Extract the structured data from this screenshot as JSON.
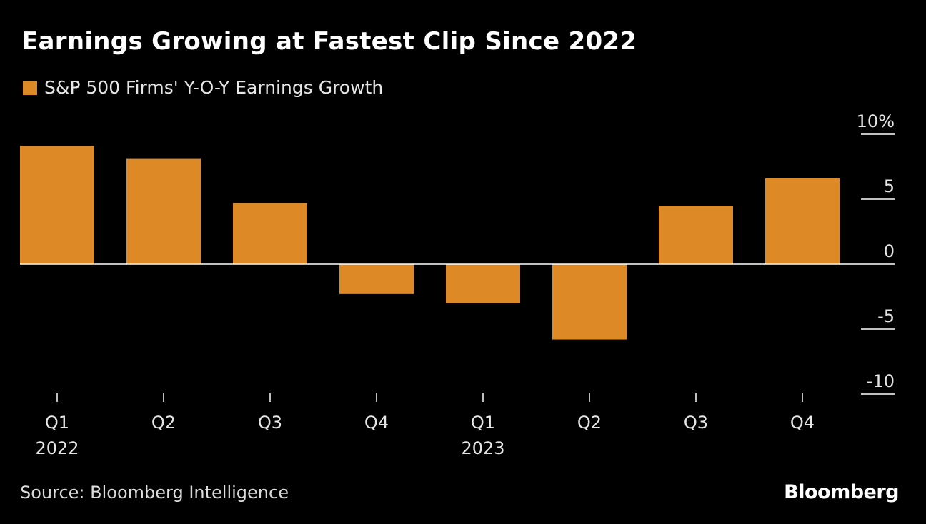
{
  "header": {
    "title": "Earnings Growing at Fastest Clip Since 2022"
  },
  "footer": {
    "source": "Source: Bloomberg Intelligence",
    "logo": "Bloomberg"
  },
  "colors": {
    "background": "#000000",
    "bar": "#dd8a26",
    "axis": "#ffffff",
    "text": "#e6e6e6"
  },
  "chart_data": {
    "type": "bar",
    "title": "Earnings Growing at Fastest Clip Since 2022",
    "legend": [
      "S&P 500 Firms' Y-O-Y Earnings Growth"
    ],
    "legend_position": "top-left",
    "categories": [
      "Q1",
      "Q2",
      "Q3",
      "Q4",
      "Q1",
      "Q2",
      "Q3",
      "Q4"
    ],
    "year_labels": [
      "2022",
      "",
      "",
      "",
      "2023",
      "",
      "",
      ""
    ],
    "series": [
      {
        "name": "S&P 500 Firms' Y-O-Y Earnings Growth",
        "values": [
          9.1,
          8.1,
          4.7,
          -2.3,
          -3.0,
          -5.8,
          4.5,
          6.6
        ]
      }
    ],
    "ylim": [
      -10,
      10
    ],
    "yticks": [
      10,
      5,
      0,
      -5,
      -10
    ],
    "ytick_labels": [
      "10%",
      "5",
      "0",
      "-5",
      "-10"
    ],
    "yaxis_position": "right",
    "xlabel": "",
    "ylabel": "",
    "grid": false
  }
}
